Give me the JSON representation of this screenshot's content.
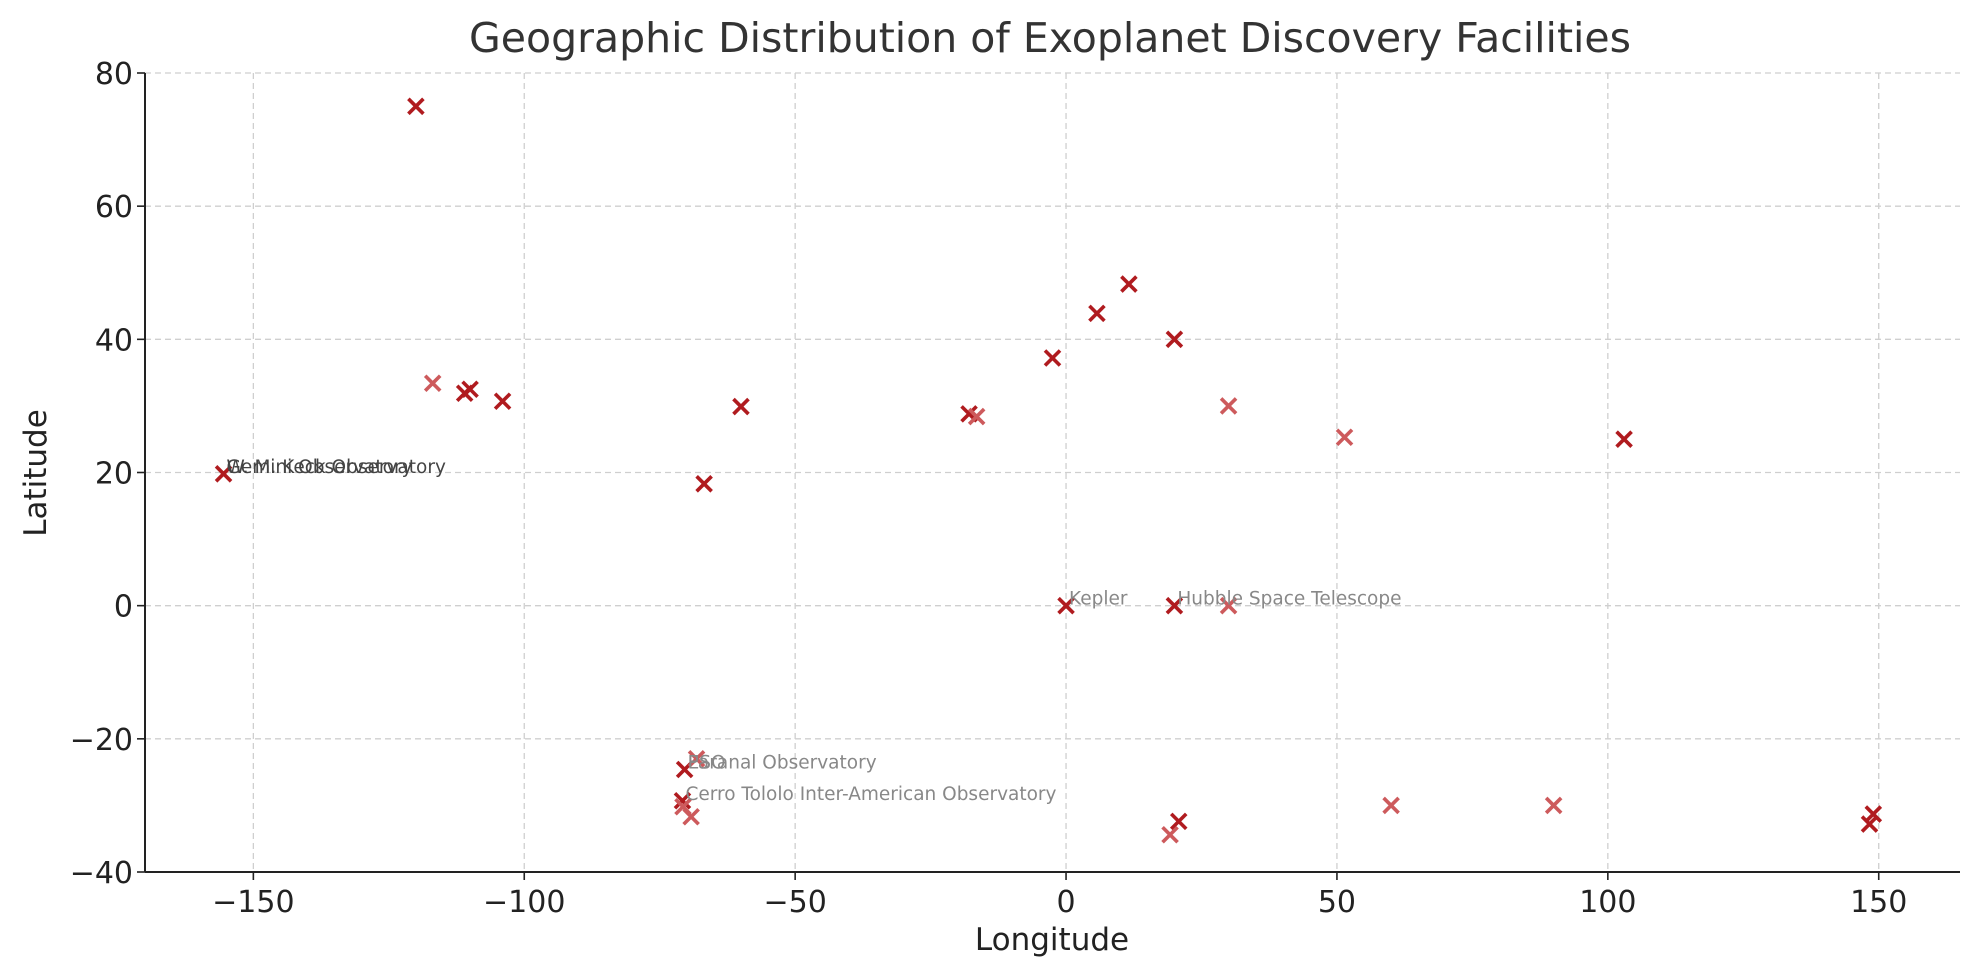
{
  "chart_data": {
    "type": "scatter",
    "title": "Geographic Distribution of Exoplanet Discovery Facilities",
    "xlabel": "Longitude",
    "ylabel": "Latitude",
    "xlim": [
      -170,
      165
    ],
    "ylim": [
      -40,
      80
    ],
    "xticks": [
      -150,
      -100,
      -50,
      0,
      50,
      100,
      150
    ],
    "xtick_labels": [
      "−150",
      "−100",
      "−50",
      "0",
      "50",
      "100",
      "150"
    ],
    "yticks": [
      -40,
      -20,
      0,
      20,
      40,
      60,
      80
    ],
    "ytick_labels": [
      "−40",
      "−20",
      "0",
      "20",
      "40",
      "60",
      "80"
    ],
    "grid": true,
    "marker": "x",
    "colors": {
      "marker_dark": "#b01b1f",
      "marker_light": "#cd5a5c",
      "annotation_dark": "#444444",
      "annotation_light": "#888888"
    },
    "points": [
      {
        "x": -120,
        "y": 75,
        "shade": "dark"
      },
      {
        "x": -116.9,
        "y": 33.4,
        "shade": "light"
      },
      {
        "x": -111,
        "y": 31.9,
        "shade": "dark"
      },
      {
        "x": -110,
        "y": 32.5,
        "shade": "dark"
      },
      {
        "x": -104,
        "y": 30.7,
        "shade": "dark"
      },
      {
        "x": -155.5,
        "y": 19.8,
        "shade": "dark"
      },
      {
        "x": -60,
        "y": 29.9,
        "shade": "dark"
      },
      {
        "x": -66.8,
        "y": 18.3,
        "shade": "dark"
      },
      {
        "x": -17.9,
        "y": 28.8,
        "shade": "dark"
      },
      {
        "x": -16.5,
        "y": 28.4,
        "shade": "light"
      },
      {
        "x": -2.5,
        "y": 37.2,
        "shade": "dark"
      },
      {
        "x": 5.7,
        "y": 43.9,
        "shade": "dark"
      },
      {
        "x": 11.6,
        "y": 48.3,
        "shade": "dark"
      },
      {
        "x": 20,
        "y": 40,
        "shade": "dark"
      },
      {
        "x": 30,
        "y": 30,
        "shade": "light"
      },
      {
        "x": 51.4,
        "y": 25.3,
        "shade": "light"
      },
      {
        "x": 103,
        "y": 25,
        "shade": "dark"
      },
      {
        "x": 0,
        "y": 0,
        "shade": "dark"
      },
      {
        "x": 20,
        "y": 0,
        "shade": "dark"
      },
      {
        "x": 30,
        "y": 0,
        "shade": "light"
      },
      {
        "x": -70.4,
        "y": -24.6,
        "shade": "dark"
      },
      {
        "x": -68.2,
        "y": -23,
        "shade": "light"
      },
      {
        "x": -70.8,
        "y": -29.3,
        "shade": "dark"
      },
      {
        "x": -70.7,
        "y": -30.2,
        "shade": "light"
      },
      {
        "x": -69.2,
        "y": -31.7,
        "shade": "light"
      },
      {
        "x": 20.8,
        "y": -32.4,
        "shade": "dark"
      },
      {
        "x": 19.2,
        "y": -34.4,
        "shade": "light"
      },
      {
        "x": 60,
        "y": -30,
        "shade": "light"
      },
      {
        "x": 90,
        "y": -30,
        "shade": "light"
      },
      {
        "x": 149,
        "y": -31.3,
        "shade": "dark"
      },
      {
        "x": 148.3,
        "y": -32.8,
        "shade": "dark"
      }
    ],
    "annotations": [
      {
        "text": "Gemini Observatory",
        "x": -155.5,
        "y": 19.8,
        "shade": "dark"
      },
      {
        "text": "W. M. Keck Observatory",
        "x": -155.5,
        "y": 19.8,
        "shade": "dark"
      },
      {
        "text": "Kepler",
        "x": 0,
        "y": 0,
        "shade": "light"
      },
      {
        "text": "Hubble Space Telescope",
        "x": 20,
        "y": 0,
        "shade": "light"
      },
      {
        "text": "Paranal Observatory",
        "x": -70.4,
        "y": -24.6,
        "shade": "light"
      },
      {
        "text": "ESO",
        "x": -70.4,
        "y": -24.6,
        "shade": "light"
      },
      {
        "text": "Cerro Tololo Inter-American Observatory",
        "x": -70.8,
        "y": -29.3,
        "shade": "light"
      }
    ]
  }
}
